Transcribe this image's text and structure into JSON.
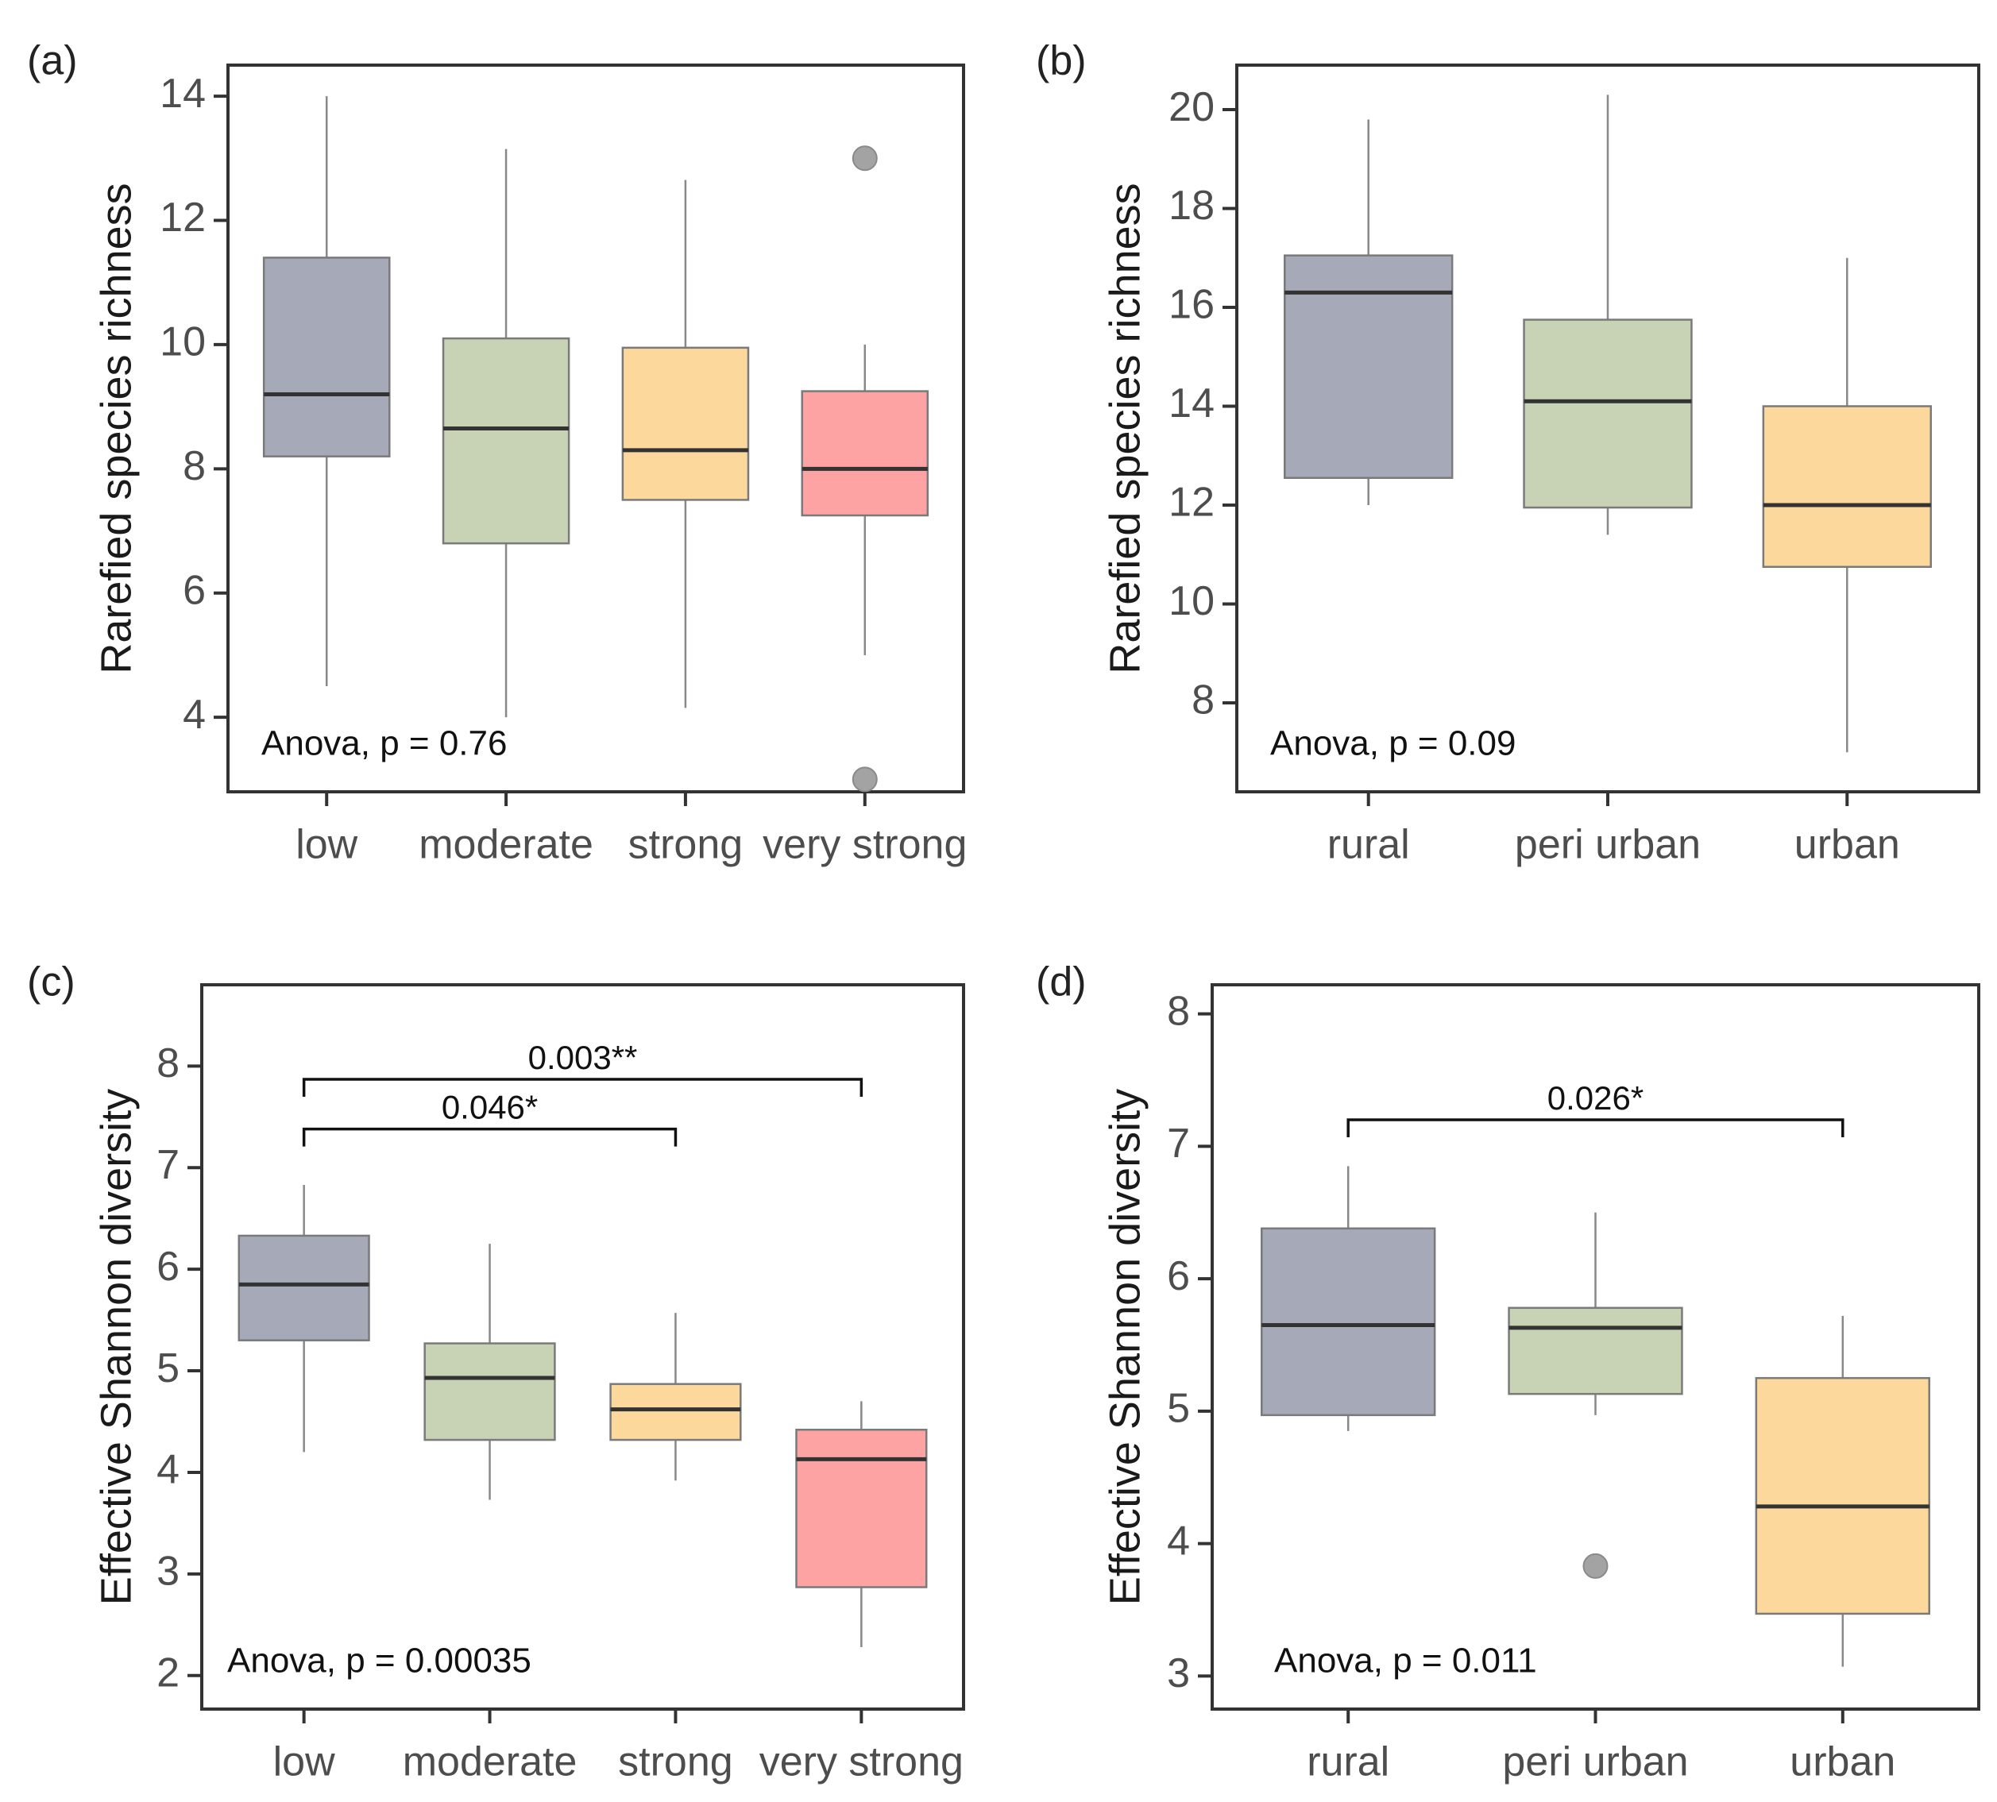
{
  "chart_data": [
    {
      "type": "box",
      "panel_label": "(a)",
      "ylabel": "Rarefied species richness",
      "ylim": [
        2.8,
        14.5
      ],
      "yticks": [
        4,
        6,
        8,
        10,
        12,
        14
      ],
      "yticks_text": [
        "4",
        "6",
        "8",
        "10",
        "12",
        "14"
      ],
      "categories": [
        "low",
        "moderate",
        "strong",
        "very strong"
      ],
      "boxes": [
        {
          "category": "low",
          "min": 4.5,
          "q1": 8.2,
          "median": 9.2,
          "q3": 11.4,
          "max": 14.0,
          "color": "#a6a9b7",
          "outliers": []
        },
        {
          "category": "moderate",
          "min": 4.0,
          "q1": 6.8,
          "median": 8.65,
          "q3": 10.1,
          "max": 13.15,
          "color": "#c8d3b6",
          "outliers": []
        },
        {
          "category": "strong",
          "min": 4.15,
          "q1": 7.5,
          "median": 8.3,
          "q3": 9.95,
          "max": 12.65,
          "color": "#fdd89c",
          "outliers": []
        },
        {
          "category": "very strong",
          "min": 5.0,
          "q1": 7.25,
          "median": 8.0,
          "q3": 9.25,
          "max": 10.0,
          "color": "#fda3a3",
          "outliers": [
            13.0,
            3.0
          ]
        }
      ],
      "annotation": "Anova, p = 0.76",
      "comparisons": []
    },
    {
      "type": "box",
      "panel_label": "(b)",
      "ylabel": "Rarefied species richness",
      "ylim": [
        6.2,
        20.9
      ],
      "yticks": [
        8,
        10,
        12,
        14,
        16,
        18,
        20
      ],
      "yticks_text": [
        "8",
        "10",
        "12",
        "14",
        "16",
        "18",
        "20"
      ],
      "categories": [
        "rural",
        "peri urban",
        "urban"
      ],
      "boxes": [
        {
          "category": "rural",
          "min": 12.0,
          "q1": 12.55,
          "median": 16.3,
          "q3": 17.05,
          "max": 19.8,
          "color": "#a6a9b7",
          "outliers": []
        },
        {
          "category": "peri urban",
          "min": 11.4,
          "q1": 11.95,
          "median": 14.1,
          "q3": 15.75,
          "max": 20.3,
          "color": "#c8d3b6",
          "outliers": []
        },
        {
          "category": "urban",
          "min": 7.0,
          "q1": 10.75,
          "median": 12.0,
          "q3": 14.0,
          "max": 17.0,
          "color": "#fdd89c",
          "outliers": []
        }
      ],
      "annotation": "Anova, p = 0.09",
      "comparisons": []
    },
    {
      "type": "box",
      "panel_label": "(c)",
      "ylabel": "Effective Shannon diversity",
      "ylim": [
        1.67,
        8.8
      ],
      "yticks": [
        2,
        3,
        4,
        5,
        6,
        7,
        8
      ],
      "yticks_text": [
        "2",
        "3",
        "4",
        "5",
        "6",
        "7",
        "8"
      ],
      "categories": [
        "low",
        "moderate",
        "strong",
        "very strong"
      ],
      "boxes": [
        {
          "category": "low",
          "min": 4.2,
          "q1": 5.3,
          "median": 5.85,
          "q3": 6.33,
          "max": 6.83,
          "color": "#a6a9b7",
          "outliers": []
        },
        {
          "category": "moderate",
          "min": 3.73,
          "q1": 4.32,
          "median": 4.93,
          "q3": 5.27,
          "max": 6.25,
          "color": "#c8d3b6",
          "outliers": []
        },
        {
          "category": "strong",
          "min": 3.92,
          "q1": 4.32,
          "median": 4.62,
          "q3": 4.87,
          "max": 5.57,
          "color": "#fdd89c",
          "outliers": []
        },
        {
          "category": "very strong",
          "min": 2.28,
          "q1": 2.87,
          "median": 4.13,
          "q3": 4.42,
          "max": 4.7,
          "color": "#fda3a3",
          "outliers": []
        }
      ],
      "annotation": "Anova, p = 0.00035",
      "comparisons": [
        {
          "from": "low",
          "to": "strong",
          "y": 7.38,
          "label": "0.046*"
        },
        {
          "from": "low",
          "to": "very strong",
          "y": 7.87,
          "label": "0.003**"
        }
      ]
    },
    {
      "type": "box",
      "panel_label": "(d)",
      "ylabel": "Effective Shannon diversity",
      "ylim": [
        2.75,
        8.22
      ],
      "yticks": [
        3,
        4,
        5,
        6,
        7,
        8
      ],
      "yticks_text": [
        "3",
        "4",
        "5",
        "6",
        "7",
        "8"
      ],
      "categories": [
        "rural",
        "peri urban",
        "urban"
      ],
      "boxes": [
        {
          "category": "rural",
          "min": 4.85,
          "q1": 4.97,
          "median": 5.65,
          "q3": 6.38,
          "max": 6.85,
          "color": "#a6a9b7",
          "outliers": []
        },
        {
          "category": "peri urban",
          "min": 4.97,
          "q1": 5.13,
          "median": 5.63,
          "q3": 5.78,
          "max": 6.5,
          "color": "#c8d3b6",
          "outliers": [
            3.83
          ]
        },
        {
          "category": "urban",
          "min": 3.07,
          "q1": 3.47,
          "median": 4.28,
          "q3": 5.25,
          "max": 5.72,
          "color": "#fdd89c",
          "outliers": []
        }
      ],
      "annotation": "Anova, p = 0.011",
      "comparisons": [
        {
          "from": "rural",
          "to": "urban",
          "y": 7.2,
          "label": "0.026*"
        }
      ]
    }
  ]
}
